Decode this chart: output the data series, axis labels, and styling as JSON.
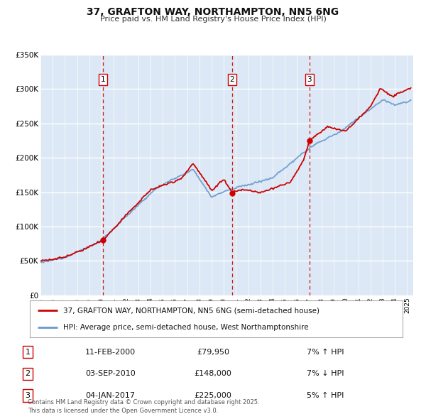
{
  "title": "37, GRAFTON WAY, NORTHAMPTON, NN5 6NG",
  "subtitle": "Price paid vs. HM Land Registry's House Price Index (HPI)",
  "background_color": "#ffffff",
  "plot_bg_color": "#dce8f5",
  "grid_color": "#ffffff",
  "red_line_color": "#cc0000",
  "blue_line_color": "#6699cc",
  "ylim": [
    0,
    350000
  ],
  "ytick_labels": [
    "£0",
    "£50K",
    "£100K",
    "£150K",
    "£200K",
    "£250K",
    "£300K",
    "£350K"
  ],
  "ytick_values": [
    0,
    50000,
    100000,
    150000,
    200000,
    250000,
    300000,
    350000
  ],
  "vline_color": "#cc0000",
  "marker_color": "#cc0000",
  "sale_points": [
    {
      "year": 2000.12,
      "price": 79950,
      "label": "1"
    },
    {
      "year": 2010.67,
      "price": 148000,
      "label": "2"
    },
    {
      "year": 2017.01,
      "price": 225000,
      "label": "3"
    }
  ],
  "legend_red_label": "37, GRAFTON WAY, NORTHAMPTON, NN5 6NG (semi-detached house)",
  "legend_blue_label": "HPI: Average price, semi-detached house, West Northamptonshire",
  "table_rows": [
    {
      "num": "1",
      "date": "11-FEB-2000",
      "price": "£79,950",
      "change": "7% ↑ HPI"
    },
    {
      "num": "2",
      "date": "03-SEP-2010",
      "price": "£148,000",
      "change": "7% ↓ HPI"
    },
    {
      "num": "3",
      "date": "04-JAN-2017",
      "price": "£225,000",
      "change": "5% ↑ HPI"
    }
  ],
  "footer": "Contains HM Land Registry data © Crown copyright and database right 2025.\nThis data is licensed under the Open Government Licence v3.0.",
  "xmin": 1995,
  "xmax": 2025.5
}
